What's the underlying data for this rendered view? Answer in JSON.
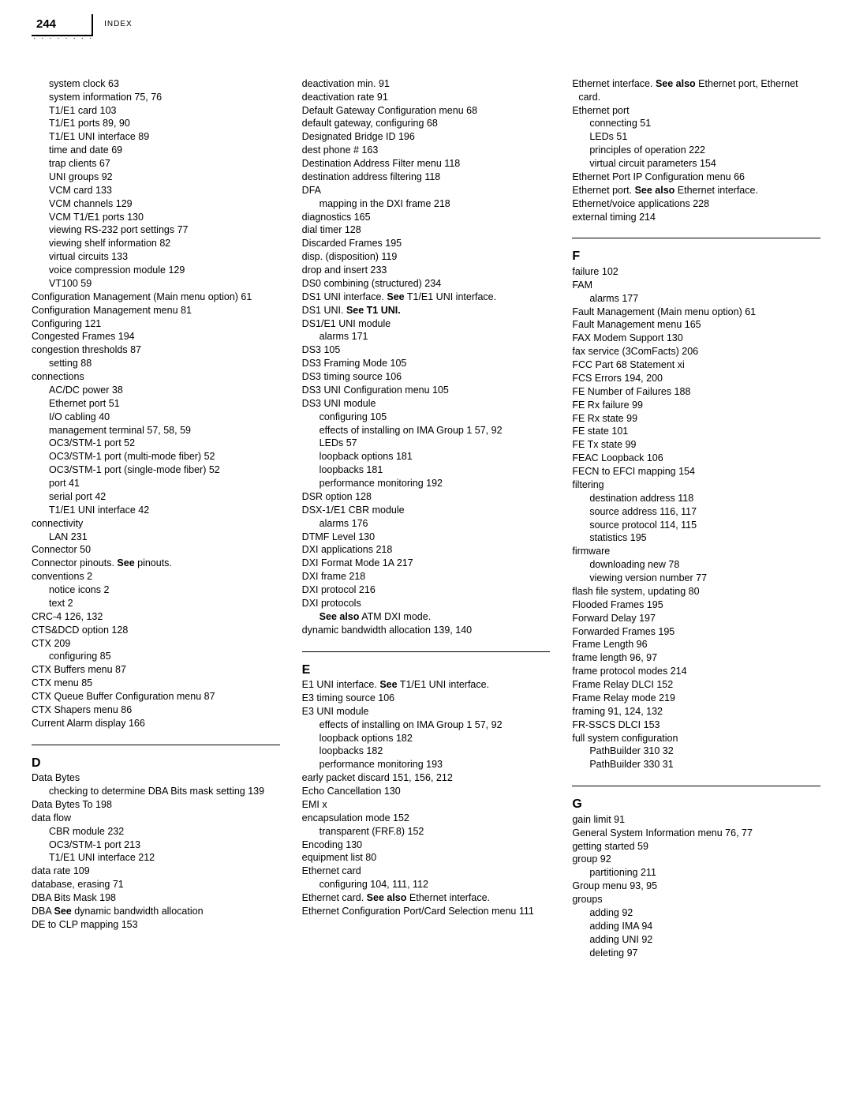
{
  "header": {
    "page_number": "244",
    "label": "INDEX",
    "dots": "· · · · · · · ·"
  },
  "col1": [
    {
      "lvl": 1,
      "t": "system clock   63"
    },
    {
      "lvl": 1,
      "t": "system information   75, 76"
    },
    {
      "lvl": 1,
      "t": "T1/E1 card   103"
    },
    {
      "lvl": 1,
      "t": "T1/E1 ports   89, 90"
    },
    {
      "lvl": 1,
      "t": "T1/E1 UNI interface   89"
    },
    {
      "lvl": 1,
      "t": "time and date   69"
    },
    {
      "lvl": 1,
      "t": "trap clients   67"
    },
    {
      "lvl": 1,
      "t": "UNI groups   92"
    },
    {
      "lvl": 1,
      "t": "VCM card   133"
    },
    {
      "lvl": 1,
      "t": "VCM channels   129"
    },
    {
      "lvl": 1,
      "t": "VCM T1/E1 ports   130"
    },
    {
      "lvl": 1,
      "t": "viewing RS-232 port settings   77"
    },
    {
      "lvl": 1,
      "t": "viewing shelf information   82"
    },
    {
      "lvl": 1,
      "t": "virtual circuits   133"
    },
    {
      "lvl": 1,
      "t": "voice compression module   129"
    },
    {
      "lvl": 1,
      "t": "VT100   59"
    },
    {
      "lvl": 0,
      "t": "Configuration Management (Main menu option)   61"
    },
    {
      "lvl": 0,
      "t": "Configuration Management menu   81"
    },
    {
      "lvl": 0,
      "t": "Configuring   121"
    },
    {
      "lvl": 0,
      "t": "Congested Frames   194"
    },
    {
      "lvl": 0,
      "t": "congestion thresholds   87"
    },
    {
      "lvl": 1,
      "t": "setting   88"
    },
    {
      "lvl": 0,
      "t": "connections"
    },
    {
      "lvl": 1,
      "t": "AC/DC power   38"
    },
    {
      "lvl": 1,
      "t": "Ethernet port   51"
    },
    {
      "lvl": 1,
      "t": "I/O cabling   40"
    },
    {
      "lvl": 1,
      "t": "management terminal   57, 58, 59"
    },
    {
      "lvl": 1,
      "t": "OC3/STM-1 port   52"
    },
    {
      "lvl": 1,
      "t": "OC3/STM-1 port (multi-mode fiber)   52"
    },
    {
      "lvl": 1,
      "t": "OC3/STM-1 port (single-mode fiber)   52"
    },
    {
      "lvl": 1,
      "t": "port   41"
    },
    {
      "lvl": 1,
      "t": "serial port   42"
    },
    {
      "lvl": 1,
      "t": "T1/E1 UNI interface   42"
    },
    {
      "lvl": 0,
      "t": "connectivity"
    },
    {
      "lvl": 1,
      "t": "LAN   231"
    },
    {
      "lvl": 0,
      "t": "Connector   50"
    },
    {
      "lvl": 0,
      "pre": "Connector pinouts. ",
      "b": "See",
      "post": " pinouts."
    },
    {
      "lvl": 0,
      "t": "conventions   2"
    },
    {
      "lvl": 1,
      "t": "notice icons   2"
    },
    {
      "lvl": 1,
      "t": "text   2"
    },
    {
      "lvl": 0,
      "t": "CRC-4   126, 132"
    },
    {
      "lvl": 0,
      "t": "CTS&DCD option   128"
    },
    {
      "lvl": 0,
      "t": "CTX   209"
    },
    {
      "lvl": 1,
      "t": "configuring   85"
    },
    {
      "lvl": 0,
      "t": "CTX Buffers menu   87"
    },
    {
      "lvl": 0,
      "t": "CTX menu   85"
    },
    {
      "lvl": 0,
      "t": "CTX Queue Buffer Configuration menu   87"
    },
    {
      "lvl": 0,
      "t": "CTX Shapers menu   86"
    },
    {
      "lvl": 0,
      "t": "Current Alarm display   166"
    },
    {
      "rule": true
    },
    {
      "letter": "D"
    },
    {
      "lvl": 0,
      "t": "Data Bytes"
    },
    {
      "lvl": 1,
      "t": "checking to determine DBA Bits mask setting   139"
    },
    {
      "lvl": 0,
      "t": "Data Bytes To   198"
    },
    {
      "lvl": 0,
      "t": "data flow"
    },
    {
      "lvl": 1,
      "t": "CBR module   232"
    },
    {
      "lvl": 1,
      "t": "OC3/STM-1 port   213"
    },
    {
      "lvl": 1,
      "t": "T1/E1 UNI interface   212"
    },
    {
      "lvl": 0,
      "t": "data rate   109"
    },
    {
      "lvl": 0,
      "t": "database, erasing   71"
    },
    {
      "lvl": 0,
      "t": "DBA Bits Mask   198"
    },
    {
      "lvl": 0,
      "pre": "DBA ",
      "b": "See",
      "post": " dynamic bandwidth allocation"
    },
    {
      "lvl": 0,
      "t": "DE to CLP mapping   153"
    }
  ],
  "col2": [
    {
      "lvl": 0,
      "t": "deactivation min.   91"
    },
    {
      "lvl": 0,
      "t": "deactivation rate   91"
    },
    {
      "lvl": 0,
      "t": "Default Gateway Configuration menu   68"
    },
    {
      "lvl": 0,
      "t": "default gateway, configuring   68"
    },
    {
      "lvl": 0,
      "t": "Designated Bridge ID   196"
    },
    {
      "lvl": 0,
      "t": "dest phone #   163"
    },
    {
      "lvl": 0,
      "t": "Destination Address Filter menu   118"
    },
    {
      "lvl": 0,
      "t": "destination address filtering   118"
    },
    {
      "lvl": 0,
      "t": "DFA"
    },
    {
      "lvl": 1,
      "t": "mapping in the DXI frame   218"
    },
    {
      "lvl": 0,
      "t": "diagnostics   165"
    },
    {
      "lvl": 0,
      "t": "dial timer   128"
    },
    {
      "lvl": 0,
      "t": "Discarded Frames   195"
    },
    {
      "lvl": 0,
      "t": "disp. (disposition)   119"
    },
    {
      "lvl": 0,
      "t": "drop and insert   233"
    },
    {
      "lvl": 0,
      "t": "DS0 combining (structured)   234"
    },
    {
      "lvl": 0,
      "pre": "DS1 UNI interface. ",
      "b": "See",
      "post": " T1/E1 UNI interface."
    },
    {
      "lvl": 0,
      "pre": "DS1 UNI. ",
      "b": "See T1 UNI.",
      "post": ""
    },
    {
      "lvl": 0,
      "t": "DS1/E1 UNI module"
    },
    {
      "lvl": 1,
      "t": "alarms   171"
    },
    {
      "lvl": 0,
      "t": "DS3   105"
    },
    {
      "lvl": 0,
      "t": "DS3 Framing Mode   105"
    },
    {
      "lvl": 0,
      "t": "DS3 timing source   106"
    },
    {
      "lvl": 0,
      "t": "DS3 UNI Configuration menu   105"
    },
    {
      "lvl": 0,
      "t": "DS3 UNI module"
    },
    {
      "lvl": 1,
      "t": "configuring   105"
    },
    {
      "lvl": 1,
      "t": "effects of installing on IMA Group 1   57, 92"
    },
    {
      "lvl": 1,
      "t": "LEDs   57"
    },
    {
      "lvl": 1,
      "t": "loopback options   181"
    },
    {
      "lvl": 1,
      "t": "loopbacks   181"
    },
    {
      "lvl": 1,
      "t": "performance monitoring   192"
    },
    {
      "lvl": 0,
      "t": "DSR option   128"
    },
    {
      "lvl": 0,
      "t": "DSX-1/E1 CBR module"
    },
    {
      "lvl": 1,
      "t": "alarms   176"
    },
    {
      "lvl": 0,
      "t": "DTMF Level   130"
    },
    {
      "lvl": 0,
      "t": "DXI applications   218"
    },
    {
      "lvl": 0,
      "t": "DXI Format Mode 1A   217"
    },
    {
      "lvl": 0,
      "t": "DXI frame   218"
    },
    {
      "lvl": 0,
      "t": "DXI protocol   216"
    },
    {
      "lvl": 0,
      "t": "DXI protocols"
    },
    {
      "lvl": 1,
      "pre": "",
      "b": "See also",
      "post": " ATM DXI mode."
    },
    {
      "lvl": 0,
      "t": "dynamic bandwidth allocation   139, 140"
    },
    {
      "rule": true
    },
    {
      "letter": "E"
    },
    {
      "lvl": 0,
      "pre": "E1 UNI interface. ",
      "b": "See",
      "post": " T1/E1 UNI interface."
    },
    {
      "lvl": 0,
      "t": "E3 timing source   106"
    },
    {
      "lvl": 0,
      "t": "E3 UNI module"
    },
    {
      "lvl": 1,
      "t": "effects of installing on IMA Group 1   57, 92"
    },
    {
      "lvl": 1,
      "t": "loopback options   182"
    },
    {
      "lvl": 1,
      "t": "loopbacks   182"
    },
    {
      "lvl": 1,
      "t": "performance monitoring   193"
    },
    {
      "lvl": 0,
      "t": "early packet discard   151, 156, 212"
    },
    {
      "lvl": 0,
      "t": "Echo Cancellation   130"
    },
    {
      "lvl": 0,
      "t": "EMI   x"
    },
    {
      "lvl": 0,
      "t": "encapsulation mode   152"
    },
    {
      "lvl": 1,
      "t": "transparent (FRF.8)   152"
    },
    {
      "lvl": 0,
      "t": "Encoding   130"
    },
    {
      "lvl": 0,
      "t": "equipment list   80"
    },
    {
      "lvl": 0,
      "t": "Ethernet card"
    },
    {
      "lvl": 1,
      "t": "configuring   104, 111, 112"
    },
    {
      "lvl": 0,
      "pre": "Ethernet card. ",
      "b": "See also",
      "post": " Ethernet interface."
    },
    {
      "lvl": 0,
      "t": "Ethernet Configuration Port/Card Selection menu   111"
    }
  ],
  "col3": [
    {
      "lvl": 0,
      "pre": "Ethernet interface. ",
      "b": "See also",
      "post": " Ethernet port, Ethernet card."
    },
    {
      "lvl": 0,
      "t": "Ethernet port"
    },
    {
      "lvl": 1,
      "t": "connecting   51"
    },
    {
      "lvl": 1,
      "t": "LEDs   51"
    },
    {
      "lvl": 1,
      "t": "principles of operation   222"
    },
    {
      "lvl": 1,
      "t": "virtual circuit parameters   154"
    },
    {
      "lvl": 0,
      "t": "Ethernet Port IP Configuration menu   66"
    },
    {
      "lvl": 0,
      "pre": "Ethernet port. ",
      "b": "See also",
      "post": " Ethernet interface."
    },
    {
      "lvl": 0,
      "t": "Ethernet/voice applications   228"
    },
    {
      "lvl": 0,
      "t": "external timing   214"
    },
    {
      "rule": true
    },
    {
      "letter": "F"
    },
    {
      "lvl": 0,
      "t": "failure   102"
    },
    {
      "lvl": 0,
      "t": "FAM"
    },
    {
      "lvl": 1,
      "t": "alarms   177"
    },
    {
      "lvl": 0,
      "t": "Fault Management (Main menu option)   61"
    },
    {
      "lvl": 0,
      "t": "Fault Management menu   165"
    },
    {
      "lvl": 0,
      "t": "FAX Modem Support   130"
    },
    {
      "lvl": 0,
      "t": "fax service (3ComFacts)   206"
    },
    {
      "lvl": 0,
      "t": "FCC Part 68 Statement   xi"
    },
    {
      "lvl": 0,
      "t": "FCS Errors   194, 200"
    },
    {
      "lvl": 0,
      "t": "FE Number of Failures   188"
    },
    {
      "lvl": 0,
      "t": "FE Rx failure   99"
    },
    {
      "lvl": 0,
      "t": "FE Rx state   99"
    },
    {
      "lvl": 0,
      "t": "FE state   101"
    },
    {
      "lvl": 0,
      "t": "FE Tx state   99"
    },
    {
      "lvl": 0,
      "t": "FEAC Loopback   106"
    },
    {
      "lvl": 0,
      "t": "FECN to EFCI mapping   154"
    },
    {
      "lvl": 0,
      "t": "filtering"
    },
    {
      "lvl": 1,
      "t": "destination address   118"
    },
    {
      "lvl": 1,
      "t": "source address   116, 117"
    },
    {
      "lvl": 1,
      "t": "source protocol   114, 115"
    },
    {
      "lvl": 1,
      "t": "statistics   195"
    },
    {
      "lvl": 0,
      "t": "firmware"
    },
    {
      "lvl": 1,
      "t": "downloading new   78"
    },
    {
      "lvl": 1,
      "t": "viewing version number   77"
    },
    {
      "lvl": 0,
      "t": "flash file system, updating   80"
    },
    {
      "lvl": 0,
      "t": "Flooded Frames   195"
    },
    {
      "lvl": 0,
      "t": "Forward Delay   197"
    },
    {
      "lvl": 0,
      "t": "Forwarded Frames   195"
    },
    {
      "lvl": 0,
      "t": "Frame Length   96"
    },
    {
      "lvl": 0,
      "t": "frame length   96, 97"
    },
    {
      "lvl": 0,
      "t": "frame protocol modes   214"
    },
    {
      "lvl": 0,
      "t": "Frame Relay DLCI   152"
    },
    {
      "lvl": 0,
      "t": "Frame Relay mode   219"
    },
    {
      "lvl": 0,
      "t": "framing   91, 124, 132"
    },
    {
      "lvl": 0,
      "t": "FR-SSCS DLCI   153"
    },
    {
      "lvl": 0,
      "t": "full system configuration"
    },
    {
      "lvl": 1,
      "t": "PathBuilder 310   32"
    },
    {
      "lvl": 1,
      "t": "PathBuilder 330   31"
    },
    {
      "rule": true
    },
    {
      "letter": "G"
    },
    {
      "lvl": 0,
      "t": "gain limit   91"
    },
    {
      "lvl": 0,
      "t": "General System Information menu   76, 77"
    },
    {
      "lvl": 0,
      "t": "getting started   59"
    },
    {
      "lvl": 0,
      "t": "group   92"
    },
    {
      "lvl": 1,
      "t": "partitioning   211"
    },
    {
      "lvl": 0,
      "t": "Group menu   93, 95"
    },
    {
      "lvl": 0,
      "t": "groups"
    },
    {
      "lvl": 1,
      "t": "adding   92"
    },
    {
      "lvl": 1,
      "t": "adding IMA   94"
    },
    {
      "lvl": 1,
      "t": "adding UNI   92"
    },
    {
      "lvl": 1,
      "t": "deleting   97"
    }
  ]
}
